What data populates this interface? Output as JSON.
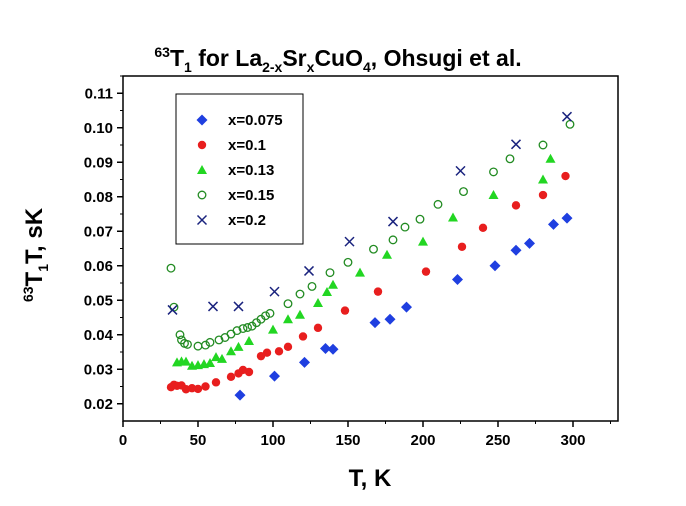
{
  "chart_data": {
    "type": "scatter",
    "title": {
      "prefix_sup": "63",
      "t": "T",
      "t_sub": "1",
      "text1": " for La",
      "la_sub": "2-x",
      "text2": "Sr",
      "sr_sub": "x",
      "text3": "CuO",
      "cuo_sub": "4",
      "text4": ", Ohsugi et al."
    },
    "xlabel": "T, K",
    "ylabel": {
      "prefix_sup": "63",
      "t": "T",
      "t_sub": "1",
      "rest": "T, sK"
    },
    "xlim": [
      0,
      330
    ],
    "ylim": [
      0.015,
      0.115
    ],
    "x_ticks": [
      0,
      50,
      100,
      150,
      200,
      250,
      300
    ],
    "y_ticks": [
      0.02,
      0.03,
      0.04,
      0.05,
      0.06,
      0.07,
      0.08,
      0.09,
      0.1,
      0.11
    ],
    "x_tick_labels": [
      "0",
      "50",
      "100",
      "150",
      "200",
      "250",
      "300"
    ],
    "y_tick_labels": [
      "0.02",
      "0.03",
      "0.04",
      "0.05",
      "0.06",
      "0.07",
      "0.08",
      "0.09",
      "0.10",
      "0.11"
    ],
    "grid": false,
    "legend_position": "top-left",
    "series": [
      {
        "name": "x=0.075",
        "marker": "diamond",
        "color": "#1f3fe0",
        "points": [
          [
            78,
            0.0225
          ],
          [
            101,
            0.028
          ],
          [
            121,
            0.032
          ],
          [
            135,
            0.036
          ],
          [
            140,
            0.0358
          ],
          [
            168,
            0.0435
          ],
          [
            178,
            0.0445
          ],
          [
            189,
            0.048
          ],
          [
            223,
            0.056
          ],
          [
            248,
            0.06
          ],
          [
            262,
            0.0645
          ],
          [
            271,
            0.0665
          ],
          [
            287,
            0.072
          ],
          [
            296,
            0.0738
          ]
        ]
      },
      {
        "name": "x=0.1",
        "marker": "circle",
        "color": "#e81e1e",
        "points": [
          [
            32,
            0.0248
          ],
          [
            34,
            0.0255
          ],
          [
            36,
            0.0252
          ],
          [
            39,
            0.0253
          ],
          [
            42,
            0.0242
          ],
          [
            46,
            0.0245
          ],
          [
            50,
            0.0243
          ],
          [
            55,
            0.025
          ],
          [
            62,
            0.0262
          ],
          [
            72,
            0.0278
          ],
          [
            77,
            0.0288
          ],
          [
            80,
            0.0298
          ],
          [
            84,
            0.0292
          ],
          [
            92,
            0.0338
          ],
          [
            96,
            0.0348
          ],
          [
            104,
            0.0352
          ],
          [
            110,
            0.0365
          ],
          [
            120,
            0.0395
          ],
          [
            130,
            0.042
          ],
          [
            148,
            0.047
          ],
          [
            170,
            0.0525
          ],
          [
            202,
            0.0583
          ],
          [
            226,
            0.0655
          ],
          [
            240,
            0.071
          ],
          [
            262,
            0.0775
          ],
          [
            280,
            0.0805
          ],
          [
            295,
            0.086
          ]
        ]
      },
      {
        "name": "x=0.13",
        "marker": "triangle",
        "color": "#22d622",
        "points": [
          [
            36,
            0.032
          ],
          [
            39,
            0.0323
          ],
          [
            42,
            0.0322
          ],
          [
            46,
            0.031
          ],
          [
            50,
            0.0312
          ],
          [
            54,
            0.0315
          ],
          [
            58,
            0.0318
          ],
          [
            62,
            0.0335
          ],
          [
            66,
            0.033
          ],
          [
            72,
            0.0352
          ],
          [
            77,
            0.0365
          ],
          [
            84,
            0.0382
          ],
          [
            100,
            0.0415
          ],
          [
            110,
            0.0445
          ],
          [
            118,
            0.0458
          ],
          [
            130,
            0.0492
          ],
          [
            136,
            0.0524
          ],
          [
            140,
            0.0545
          ],
          [
            158,
            0.058
          ],
          [
            176,
            0.0632
          ],
          [
            200,
            0.067
          ],
          [
            220,
            0.074
          ],
          [
            247,
            0.0805
          ],
          [
            280,
            0.085
          ],
          [
            285,
            0.091
          ]
        ]
      },
      {
        "name": "x=0.15",
        "marker": "open-circle",
        "color": "#228b22",
        "points": [
          [
            32,
            0.0593
          ],
          [
            34,
            0.048
          ],
          [
            38,
            0.04
          ],
          [
            39,
            0.0385
          ],
          [
            41,
            0.0375
          ],
          [
            43,
            0.0372
          ],
          [
            50,
            0.0367
          ],
          [
            55,
            0.037
          ],
          [
            58,
            0.0378
          ],
          [
            64,
            0.0385
          ],
          [
            68,
            0.0392
          ],
          [
            72,
            0.0402
          ],
          [
            76,
            0.0412
          ],
          [
            80,
            0.0418
          ],
          [
            83,
            0.0421
          ],
          [
            86,
            0.0425
          ],
          [
            89,
            0.0435
          ],
          [
            92,
            0.0445
          ],
          [
            95,
            0.0455
          ],
          [
            98,
            0.0462
          ],
          [
            110,
            0.049
          ],
          [
            118,
            0.0518
          ],
          [
            126,
            0.054
          ],
          [
            138,
            0.058
          ],
          [
            150,
            0.061
          ],
          [
            167,
            0.0648
          ],
          [
            180,
            0.0675
          ],
          [
            188,
            0.0712
          ],
          [
            198,
            0.0735
          ],
          [
            210,
            0.0778
          ],
          [
            227,
            0.0815
          ],
          [
            247,
            0.0872
          ],
          [
            258,
            0.091
          ],
          [
            280,
            0.095
          ],
          [
            298,
            0.101
          ]
        ]
      },
      {
        "name": "x=0.2",
        "marker": "cross",
        "color": "#1a237e",
        "points": [
          [
            33,
            0.0472
          ],
          [
            60,
            0.0482
          ],
          [
            77,
            0.0482
          ],
          [
            101,
            0.0525
          ],
          [
            124,
            0.0585
          ],
          [
            151,
            0.067
          ],
          [
            180,
            0.0728
          ],
          [
            225,
            0.0875
          ],
          [
            262,
            0.0952
          ],
          [
            296,
            0.1032
          ]
        ]
      }
    ]
  }
}
